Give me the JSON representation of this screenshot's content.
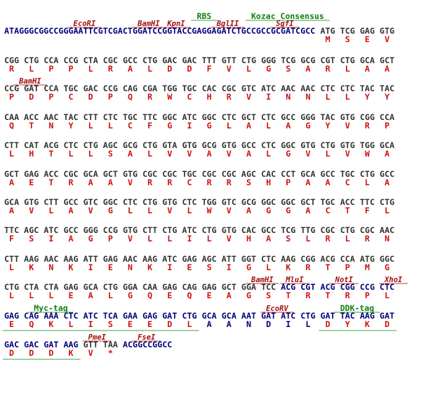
{
  "lines": [
    {
      "labels": [
        "EcoRI",
        "BamHI",
        "KpnI",
        "RBS",
        "BglII",
        "Kozac Consensus",
        "SgfI"
      ],
      "prefix": "ATAGGGCGGCCGGGAATTCGTCGACTGGATCCGGTACCGAGGAGATCTGCCGCCGCGATCGCC",
      "codons": [
        "ATG",
        "TCG",
        "GAG",
        "GTG"
      ],
      "aa": [
        "M",
        "S",
        "E",
        "V"
      ]
    },
    {
      "labels": [],
      "codons": [
        "CGG",
        "CTG",
        "CCA",
        "CCG",
        "CTA",
        "CGC",
        "GCC",
        "CTG",
        "GAC",
        "GAC",
        "TTT",
        "GTT",
        "CTG",
        "GGG",
        "TCG",
        "GCG",
        "CGT",
        "CTG",
        "GCA",
        "GCT"
      ],
      "aa": [
        "R",
        "L",
        "P",
        "P",
        "L",
        "R",
        "A",
        "L",
        "D",
        "D",
        "F",
        "V",
        "L",
        "G",
        "S",
        "A",
        "R",
        "L",
        "A",
        "A"
      ]
    },
    {
      "labels": [
        "BamHI"
      ],
      "codons": [
        "CCG",
        "GAT",
        "CCA",
        "TGC",
        "GAC",
        "CCG",
        "CAG",
        "CGA",
        "TGG",
        "TGC",
        "CAC",
        "CGC",
        "GTC",
        "ATC",
        "AAC",
        "AAC",
        "CTC",
        "CTC",
        "TAC",
        "TAC"
      ],
      "aa": [
        "P",
        "D",
        "P",
        "C",
        "D",
        "P",
        "Q",
        "R",
        "W",
        "C",
        "H",
        "R",
        "V",
        "I",
        "N",
        "N",
        "L",
        "L",
        "Y",
        "Y"
      ]
    },
    {
      "labels": [],
      "codons": [
        "CAA",
        "ACC",
        "AAC",
        "TAC",
        "CTT",
        "CTC",
        "TGC",
        "TTC",
        "GGC",
        "ATC",
        "GGC",
        "CTC",
        "GCT",
        "CTC",
        "GCC",
        "GGG",
        "TAC",
        "GTG",
        "CGG",
        "CCA"
      ],
      "aa": [
        "Q",
        "T",
        "N",
        "Y",
        "L",
        "L",
        "C",
        "F",
        "G",
        "I",
        "G",
        "L",
        "A",
        "L",
        "A",
        "G",
        "Y",
        "V",
        "R",
        "P"
      ]
    },
    {
      "labels": [],
      "codons": [
        "CTT",
        "CAT",
        "ACG",
        "CTC",
        "CTG",
        "AGC",
        "GCG",
        "CTG",
        "GTA",
        "GTG",
        "GCG",
        "GTG",
        "GCC",
        "CTC",
        "GGC",
        "GTG",
        "CTG",
        "GTG",
        "TGG",
        "GCA"
      ],
      "aa": [
        "L",
        "H",
        "T",
        "L",
        "L",
        "S",
        "A",
        "L",
        "V",
        "V",
        "A",
        "V",
        "A",
        "L",
        "G",
        "V",
        "L",
        "V",
        "W",
        "A"
      ]
    },
    {
      "labels": [],
      "codons": [
        "GCT",
        "GAG",
        "ACC",
        "CGC",
        "GCA",
        "GCT",
        "GTG",
        "CGC",
        "CGC",
        "TGC",
        "CGC",
        "CGC",
        "AGC",
        "CAC",
        "CCT",
        "GCA",
        "GCC",
        "TGC",
        "CTG",
        "GCC"
      ],
      "aa": [
        "A",
        "E",
        "T",
        "R",
        "A",
        "A",
        "V",
        "R",
        "R",
        "C",
        "R",
        "R",
        "S",
        "H",
        "P",
        "A",
        "A",
        "C",
        "L",
        "A"
      ]
    },
    {
      "labels": [],
      "codons": [
        "GCA",
        "GTG",
        "CTT",
        "GCC",
        "GTC",
        "GGC",
        "CTC",
        "CTG",
        "GTG",
        "CTC",
        "TGG",
        "GTC",
        "GCG",
        "GGC",
        "GGC",
        "GCT",
        "TGC",
        "ACC",
        "TTC",
        "CTG"
      ],
      "aa": [
        "A",
        "V",
        "L",
        "A",
        "V",
        "G",
        "L",
        "L",
        "V",
        "L",
        "W",
        "V",
        "A",
        "G",
        "G",
        "A",
        "C",
        "T",
        "F",
        "L"
      ]
    },
    {
      "labels": [],
      "codons": [
        "TTC",
        "AGC",
        "ATC",
        "GCC",
        "GGG",
        "CCG",
        "GTG",
        "CTT",
        "CTG",
        "ATC",
        "CTG",
        "GTG",
        "CAC",
        "GCC",
        "TCG",
        "TTG",
        "CGC",
        "CTG",
        "CGC",
        "AAC"
      ],
      "aa": [
        "F",
        "S",
        "I",
        "A",
        "G",
        "P",
        "V",
        "L",
        "L",
        "I",
        "L",
        "V",
        "H",
        "A",
        "S",
        "L",
        "R",
        "L",
        "R",
        "N"
      ]
    },
    {
      "labels": [],
      "codons": [
        "CTT",
        "AAG",
        "AAC",
        "AAG",
        "ATT",
        "GAG",
        "AAC",
        "AAG",
        "ATC",
        "GAG",
        "AGC",
        "ATT",
        "GGT",
        "CTC",
        "AAG",
        "CGG",
        "ACG",
        "CCA",
        "ATG",
        "GGC"
      ],
      "aa": [
        "L",
        "K",
        "N",
        "K",
        "I",
        "E",
        "N",
        "K",
        "I",
        "E",
        "S",
        "I",
        "G",
        "L",
        "K",
        "R",
        "T",
        "P",
        "M",
        "G"
      ]
    },
    {
      "labels": [
        "BamHI",
        "MluI",
        "NotI",
        "XhoI"
      ],
      "codons": [
        "CTG",
        "CTA",
        "CTA",
        "GAG",
        "GCA",
        "CTG",
        "GGA",
        "CAA",
        "GAG",
        "CAG",
        "GAG",
        "GCT",
        "GGA",
        "TCC",
        "ACG",
        "CGT",
        "ACG",
        "CGG",
        "CCG",
        "CTC"
      ],
      "aa": [
        "L",
        "L",
        "L",
        "E",
        "A",
        "L",
        "G",
        "Q",
        "E",
        "Q",
        "E",
        "A",
        "G",
        "S",
        "T",
        "R",
        "T",
        "R",
        "P",
        "L"
      ]
    },
    {
      "labels": [
        "Myc-tag",
        "EcoRV",
        "DDK-tag"
      ],
      "codons": [
        "GAG",
        "CAG",
        "AAA",
        "CTC",
        "ATC",
        "TCA",
        "GAA",
        "GAG",
        "GAT",
        "CTG",
        "GCA",
        "GCA",
        "AAT",
        "GAT",
        "ATC",
        "CTG",
        "GAT",
        "TAC",
        "AAG",
        "GAT"
      ],
      "aa": [
        "E",
        "Q",
        "K",
        "L",
        "I",
        "S",
        "E",
        "E",
        "D",
        "L",
        "A",
        "A",
        "N",
        "D",
        "I",
        "L",
        "D",
        "Y",
        "K",
        "D"
      ]
    },
    {
      "labels": [
        "PmeI",
        "FseI"
      ],
      "codons": [
        "GAC",
        "GAC",
        "GAT",
        "AAG",
        "GTT",
        "TAA"
      ],
      "aa": [
        "D",
        "D",
        "D",
        "K",
        "V",
        "*"
      ],
      "suffix": "ACGGCCGGCC"
    }
  ]
}
